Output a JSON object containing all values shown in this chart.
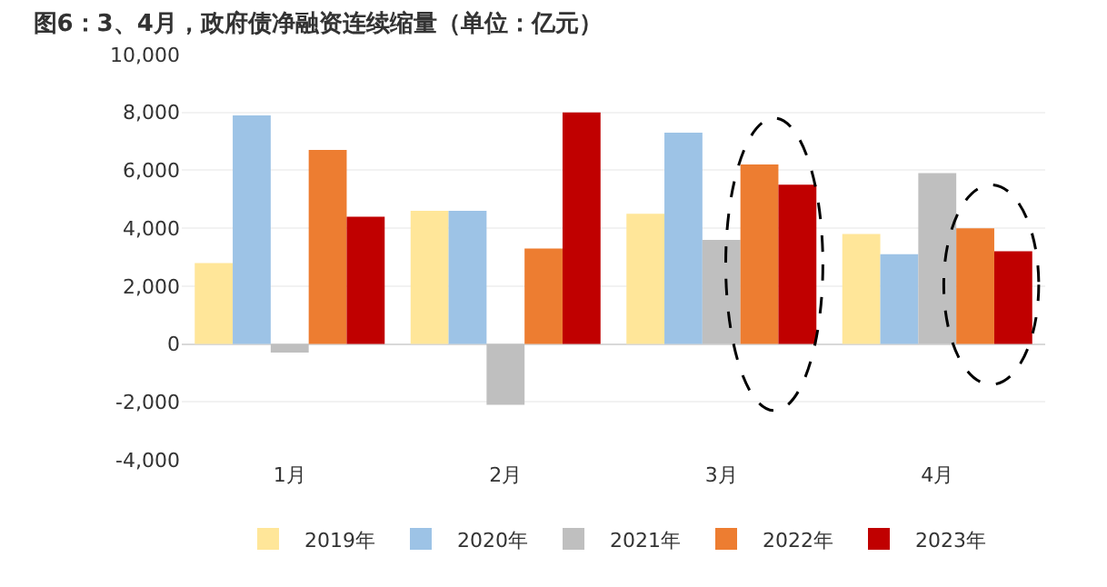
{
  "chart_data": {
    "type": "bar",
    "title": "图6：3、4月，政府债净融资连续缩量（单位：亿元）",
    "categories": [
      "1月",
      "2月",
      "3月",
      "4月"
    ],
    "series": [
      {
        "name": "2019年",
        "color": "#ffe699",
        "values": [
          2800,
          4600,
          4500,
          3800
        ]
      },
      {
        "name": "2020年",
        "color": "#9dc3e6",
        "values": [
          7900,
          4600,
          7300,
          3100
        ]
      },
      {
        "name": "2021年",
        "color": "#bfbfbf",
        "values": [
          -300,
          -2100,
          3600,
          5900
        ]
      },
      {
        "name": "2022年",
        "color": "#ed7d31",
        "values": [
          6700,
          3300,
          6200,
          4000
        ]
      },
      {
        "name": "2023年",
        "color": "#c00000",
        "values": [
          4400,
          8000,
          5500,
          3200
        ]
      }
    ],
    "ylim": [
      -4000,
      10000
    ],
    "yticks": [
      {
        "value": -4000,
        "label": "-4,000"
      },
      {
        "value": -2000,
        "label": "-2,000"
      },
      0,
      {
        "value": 2000,
        "label": "2,000"
      },
      {
        "value": 4000,
        "label": "4,000"
      },
      {
        "value": 6000,
        "label": "6,000"
      },
      {
        "value": 8000,
        "label": "8,000"
      },
      {
        "value": 10000,
        "label": "10,000"
      }
    ],
    "grid": "y",
    "legend": "bottom"
  }
}
